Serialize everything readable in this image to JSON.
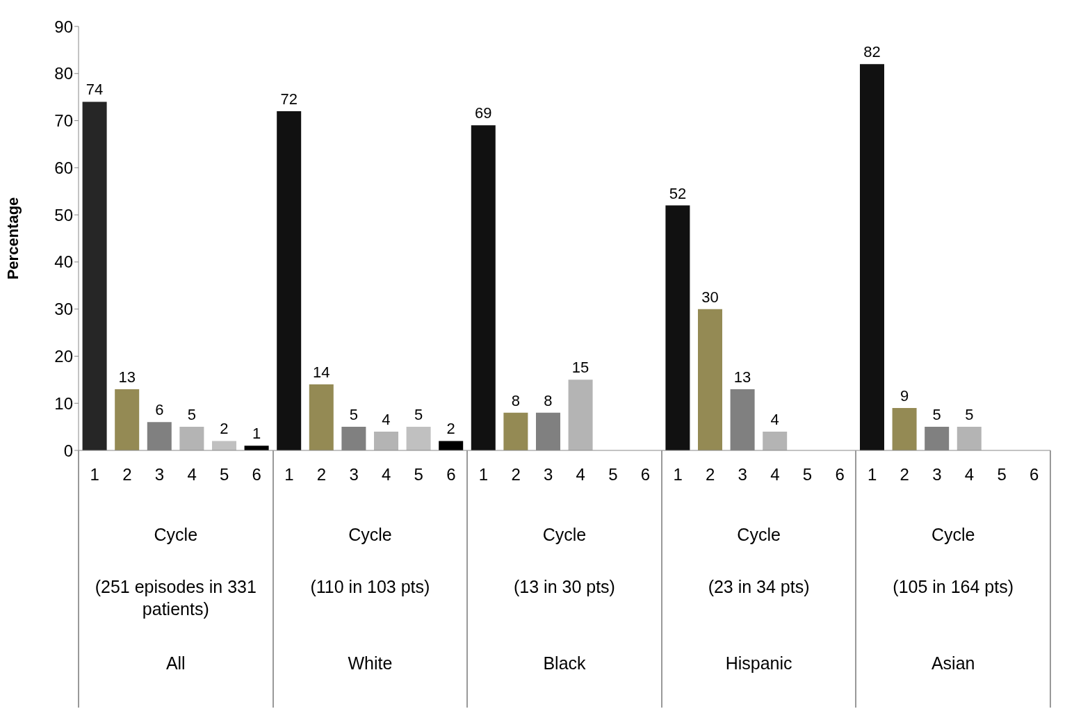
{
  "chart_data": {
    "type": "bar",
    "ylabel": "Percentage",
    "categories": [
      "1",
      "2",
      "3",
      "4",
      "5",
      "6",
      "1",
      "2",
      "3",
      "4",
      "5",
      "6",
      "1",
      "2",
      "3",
      "4",
      "5",
      "6",
      "1",
      "2",
      "3",
      "4",
      "5",
      "6",
      "1",
      "2",
      "3",
      "4",
      "5",
      "6"
    ],
    "values": [
      74,
      13,
      6,
      5,
      2,
      1,
      72,
      14,
      5,
      4,
      5,
      2,
      69,
      8,
      8,
      15,
      null,
      null,
      52,
      30,
      13,
      4,
      null,
      null,
      82,
      9,
      5,
      5,
      null,
      null
    ],
    "colors": [
      "#262626",
      "#948a54",
      "#808080",
      "#b4b4b4",
      "#c0c0c0",
      "#000000",
      "#111111",
      "#948a54",
      "#808080",
      "#b4b4b4",
      "#c0c0c0",
      "#000000",
      "#111111",
      "#948a54",
      "#808080",
      "#b4b4b4",
      "#c0c0c0",
      "#000000",
      "#111111",
      "#948a54",
      "#808080",
      "#b4b4b4",
      "#c0c0c0",
      "#000000",
      "#111111",
      "#948a54",
      "#808080",
      "#b4b4b4",
      "#c0c0c0",
      "#000000"
    ],
    "ylim": [
      0,
      90
    ],
    "yticks": [
      0,
      10,
      20,
      30,
      40,
      50,
      60,
      70,
      80,
      90
    ],
    "data_labels": true,
    "annotations": [
      "Cycle",
      "(251 episodes in 331 patients)",
      "All",
      "Cycle",
      "(110 in 103 pts)",
      "White",
      "Cycle",
      "(13 in 30 pts)",
      "Black",
      "Cycle",
      "(23 in 34 pts)",
      "Hispanic",
      "Cycle",
      "(105 in 164 pts)",
      "Asian"
    ]
  }
}
